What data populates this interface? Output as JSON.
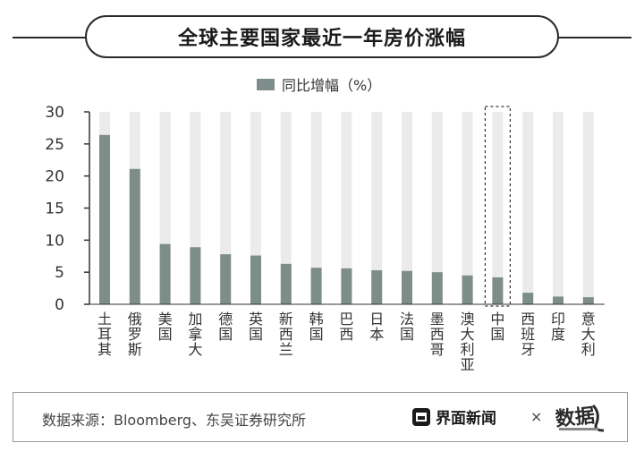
{
  "chart_data": {
    "type": "bar",
    "title": "全球主要国家最近一年房价涨幅",
    "legend": [
      "同比增幅（%）"
    ],
    "legend_position": "top-center",
    "categories": [
      "土耳其",
      "俄罗斯",
      "美国",
      "加拿大",
      "德国",
      "英国",
      "新西兰",
      "韩国",
      "巴西",
      "日本",
      "法国",
      "墨西哥",
      "澳大利亚",
      "中国",
      "西班牙",
      "印度",
      "意大利"
    ],
    "series": [
      {
        "name": "同比增幅（%）",
        "values": [
          26.4,
          21.1,
          9.4,
          8.9,
          7.8,
          7.6,
          6.3,
          5.7,
          5.6,
          5.3,
          5.2,
          5.0,
          4.5,
          4.2,
          1.8,
          1.2,
          1.1
        ]
      }
    ],
    "ylim": [
      0,
      30
    ],
    "yticks": [
      "0",
      "5",
      "10",
      "15",
      "20",
      "25",
      "30"
    ],
    "xlabel": "",
    "ylabel": "",
    "highlight_category": "中国",
    "grid": false,
    "colors": {
      "bar": "#7d8d8a",
      "track": "#ebebeb",
      "axis": "#333333"
    }
  },
  "footer": {
    "source": "数据来源：Bloomberg、东吴证券研究所",
    "brand": "界面新闻",
    "times": "×",
    "logo_text": "数据",
    "logo_icon": "brand-logo-icon"
  },
  "watermark": "数据"
}
